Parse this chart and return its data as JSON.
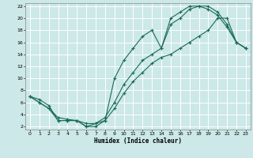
{
  "title": "",
  "xlabel": "Humidex (Indice chaleur)",
  "bg_color": "#cce8e8",
  "grid_color": "#ffffff",
  "line_color": "#1a6b5a",
  "xlim": [
    -0.5,
    23.5
  ],
  "ylim": [
    1.5,
    22.5
  ],
  "xticks": [
    0,
    1,
    2,
    3,
    4,
    5,
    6,
    7,
    8,
    9,
    10,
    11,
    12,
    13,
    14,
    15,
    16,
    17,
    18,
    19,
    20,
    21,
    22,
    23
  ],
  "yticks": [
    2,
    4,
    6,
    8,
    10,
    12,
    14,
    16,
    18,
    20,
    22
  ],
  "line1_x": [
    0,
    1,
    2,
    3,
    4,
    5,
    6,
    7,
    8,
    9,
    10,
    11,
    12,
    13,
    14,
    15,
    16,
    17,
    18,
    19,
    20,
    21,
    22,
    23
  ],
  "line1_y": [
    7,
    6,
    5,
    3,
    3,
    3,
    2,
    2,
    3,
    10,
    13,
    15,
    17,
    18,
    15,
    20,
    21,
    22,
    22,
    22,
    21,
    19,
    16,
    15
  ],
  "line2_x": [
    0,
    1,
    2,
    3,
    4,
    5,
    6,
    7,
    8,
    9,
    10,
    11,
    12,
    13,
    14,
    15,
    16,
    17,
    18,
    19,
    20,
    21,
    22,
    23
  ],
  "line2_y": [
    7,
    6,
    5,
    3.5,
    3.2,
    3,
    2.5,
    2.5,
    3.5,
    6,
    9,
    11,
    13,
    14,
    15,
    19,
    20,
    21.5,
    22,
    21.5,
    20.5,
    18.5,
    16,
    15
  ],
  "line3_x": [
    0,
    1,
    2,
    3,
    4,
    5,
    6,
    7,
    8,
    9,
    10,
    11,
    12,
    13,
    14,
    15,
    16,
    17,
    18,
    19,
    20,
    21,
    22,
    23
  ],
  "line3_y": [
    7,
    6.5,
    5.5,
    3,
    3,
    3,
    2,
    2.5,
    3,
    5,
    7.5,
    9.5,
    11,
    12.5,
    13.5,
    14,
    15,
    16,
    17,
    18,
    20,
    20,
    16,
    15
  ],
  "marker": "+"
}
